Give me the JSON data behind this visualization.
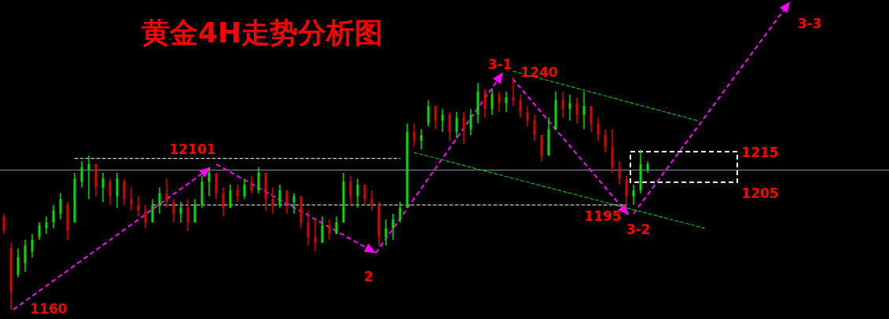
{
  "chart_data": {
    "type": "candlestick",
    "title": "黄金4H走势分析图",
    "categories": [
      null,
      null,
      null,
      null,
      null,
      null,
      null,
      null,
      null,
      null,
      null,
      null,
      null,
      null,
      null,
      null,
      null,
      null,
      null,
      null,
      null,
      null,
      null,
      null,
      null,
      null,
      null,
      null,
      null,
      null,
      null,
      null,
      null,
      null,
      null,
      null,
      null,
      null,
      null,
      null,
      null,
      null,
      null,
      null,
      null,
      null,
      null,
      null,
      null,
      null,
      null,
      null,
      null,
      null,
      null,
      null,
      null,
      null,
      null,
      null,
      null,
      null,
      null,
      null,
      null,
      null,
      null,
      null,
      null,
      null,
      null,
      null,
      null,
      null,
      null,
      null,
      null,
      null,
      null,
      null,
      null,
      null,
      null,
      null,
      null,
      null,
      null,
      null,
      null,
      null,
      null,
      null,
      null,
      null,
      null,
      null,
      null,
      null,
      null,
      null,
      null,
      null,
      null,
      null,
      null,
      null,
      null,
      null,
      null,
      null,
      null,
      null
    ],
    "ohlc": [
      [
        1192,
        1193,
        1186,
        1187
      ],
      [
        1181,
        1183,
        1160,
        1166
      ],
      [
        1172,
        1181,
        1171,
        1178
      ],
      [
        1176,
        1184,
        1173,
        1182
      ],
      [
        1180,
        1186,
        1178,
        1184
      ],
      [
        1185,
        1190,
        1184,
        1189
      ],
      [
        1188,
        1192,
        1186,
        1190
      ],
      [
        1190,
        1196,
        1188,
        1194
      ],
      [
        1193,
        1200,
        1191,
        1198
      ],
      [
        1196,
        1197,
        1184,
        1187
      ],
      [
        1190,
        1207,
        1190,
        1205
      ],
      [
        1204,
        1211,
        1202,
        1209
      ],
      [
        1208,
        1213,
        1198,
        1210
      ],
      [
        1210,
        1210,
        1199,
        1202
      ],
      [
        1202,
        1207,
        1197,
        1205
      ],
      [
        1204,
        1205,
        1196,
        1199
      ],
      [
        1199,
        1207,
        1195,
        1205
      ],
      [
        1204,
        1205,
        1196,
        1198
      ],
      [
        1198,
        1202,
        1194,
        1196
      ],
      [
        1196,
        1199,
        1192,
        1194
      ],
      [
        1194,
        1196,
        1188,
        1190
      ],
      [
        1190,
        1198,
        1190,
        1196
      ],
      [
        1196,
        1202,
        1193,
        1200
      ],
      [
        1200,
        1205,
        1195,
        1197
      ],
      [
        1197,
        1198,
        1190,
        1193
      ],
      [
        1193,
        1197,
        1190,
        1195
      ],
      [
        1195,
        1198,
        1187,
        1190
      ],
      [
        1190,
        1198,
        1190,
        1196
      ],
      [
        1196,
        1206,
        1195,
        1204
      ],
      [
        1204,
        1209,
        1199,
        1207
      ],
      [
        1207,
        1207,
        1198,
        1200
      ],
      [
        1200,
        1202,
        1192,
        1195
      ],
      [
        1195,
        1203,
        1195,
        1201
      ],
      [
        1201,
        1203,
        1197,
        1199
      ],
      [
        1199,
        1205,
        1198,
        1203
      ],
      [
        1203,
        1206,
        1200,
        1201
      ],
      [
        1201,
        1209,
        1200,
        1207
      ],
      [
        1207,
        1207,
        1194,
        1198
      ],
      [
        1198,
        1202,
        1193,
        1196
      ],
      [
        1196,
        1203,
        1195,
        1201
      ],
      [
        1201,
        1201,
        1193,
        1197
      ],
      [
        1197,
        1200,
        1193,
        1199
      ],
      [
        1199,
        1199,
        1188,
        1190
      ],
      [
        1190,
        1194,
        1182,
        1185
      ],
      [
        1185,
        1191,
        1180,
        1183
      ],
      [
        1183,
        1192,
        1183,
        1189
      ],
      [
        1189,
        1191,
        1184,
        1186
      ],
      [
        1186,
        1192,
        1186,
        1190
      ],
      [
        1190,
        1207,
        1190,
        1204
      ],
      [
        1204,
        1206,
        1196,
        1199
      ],
      [
        1199,
        1205,
        1195,
        1203
      ],
      [
        1203,
        1203,
        1196,
        1198
      ],
      [
        1198,
        1201,
        1194,
        1196
      ],
      [
        1196,
        1197,
        1182,
        1185
      ],
      [
        1185,
        1191,
        1182,
        1188
      ],
      [
        1188,
        1193,
        1184,
        1191
      ],
      [
        1191,
        1197,
        1190,
        1195
      ],
      [
        1195,
        1224,
        1195,
        1221
      ],
      [
        1221,
        1224,
        1216,
        1218
      ],
      [
        1218,
        1222,
        1215,
        1220
      ],
      [
        1224,
        1232,
        1223,
        1230
      ],
      [
        1230,
        1230,
        1222,
        1225
      ],
      [
        1225,
        1229,
        1221,
        1227
      ],
      [
        1227,
        1228,
        1218,
        1221
      ],
      [
        1221,
        1228,
        1219,
        1226
      ],
      [
        1226,
        1228,
        1217,
        1222
      ],
      [
        1222,
        1229,
        1220,
        1227
      ],
      [
        1227,
        1238,
        1224,
        1235
      ],
      [
        1235,
        1236,
        1226,
        1229
      ],
      [
        1229,
        1236,
        1227,
        1234
      ],
      [
        1234,
        1235,
        1228,
        1231
      ],
      [
        1231,
        1235,
        1228,
        1233
      ],
      [
        1233,
        1240,
        1230,
        1232
      ],
      [
        1232,
        1234,
        1226,
        1228
      ],
      [
        1228,
        1230,
        1223,
        1225
      ],
      [
        1225,
        1227,
        1218,
        1220
      ],
      [
        1220,
        1220,
        1211,
        1213
      ],
      [
        1213,
        1226,
        1213,
        1222
      ],
      [
        1222,
        1235,
        1222,
        1232
      ],
      [
        1232,
        1235,
        1226,
        1229
      ],
      [
        1229,
        1234,
        1225,
        1231
      ],
      [
        1231,
        1233,
        1224,
        1227
      ],
      [
        1227,
        1235,
        1222,
        1230
      ],
      [
        1230,
        1230,
        1221,
        1224
      ],
      [
        1224,
        1226,
        1218,
        1220
      ],
      [
        1220,
        1222,
        1214,
        1216
      ],
      [
        1216,
        1222,
        1207,
        1209
      ],
      [
        1209,
        1211,
        1203,
        1205
      ],
      [
        1205,
        1206,
        1196,
        1199
      ],
      [
        1199,
        1203,
        1196,
        1201
      ],
      [
        1201,
        1215,
        1200,
        1210
      ],
      [
        1208,
        1211,
        1207,
        1210
      ],
      null,
      null,
      null,
      null,
      null,
      null,
      null,
      null,
      null,
      null,
      null,
      null,
      null,
      null,
      null,
      null,
      null,
      null,
      null,
      null
    ],
    "colors": [
      "#e00000",
      "#e00000",
      "#00e000",
      "#00e000",
      "#00e000",
      "#00e000",
      "#00e000",
      "#00e000",
      "#00e000",
      "#e00000",
      "#00e000",
      "#00e000",
      "#00e000",
      "#e00000",
      "#00e000",
      "#e00000",
      "#00e000",
      "#e00000",
      "#e00000",
      "#e00000",
      "#e00000",
      "#00e000",
      "#00e000",
      "#e00000",
      "#e00000",
      "#00e000",
      "#e00000",
      "#00e000",
      "#00e000",
      "#00e000",
      "#e00000",
      "#e00000",
      "#00e000",
      "#e00000",
      "#00e000",
      "#e00000",
      "#00e000",
      "#e00000",
      "#e00000",
      "#00e000",
      "#e00000",
      "#00e000",
      "#e00000",
      "#e00000",
      "#e00000",
      "#00e000",
      "#e00000",
      "#00e000",
      "#00e000",
      "#e00000",
      "#00e000",
      "#e00000",
      "#e00000",
      "#e00000",
      "#00e000",
      "#00e000",
      "#00e000",
      "#00e000",
      "#e00000",
      "#00e000",
      "#00e000",
      "#e00000",
      "#00e000",
      "#e00000",
      "#00e000",
      "#e00000",
      "#00e000",
      "#00e000",
      "#e00000",
      "#00e000",
      "#e00000",
      "#00e000",
      "#e00000",
      "#e00000",
      "#e00000",
      "#e00000",
      "#e00000",
      "#00e000",
      "#00e000",
      "#e00000",
      "#00e000",
      "#e00000",
      "#00e000",
      "#e00000",
      "#e00000",
      "#e00000",
      "#e00000",
      "#e00000",
      "#e00000",
      "#00e000",
      "#00e000",
      "#00e000",
      null,
      null,
      null,
      null,
      null,
      null,
      null,
      null,
      null,
      null,
      null,
      null,
      null,
      null,
      null,
      null,
      null,
      null,
      null,
      null
    ],
    "series": [
      {
        "type": "line",
        "color": "#00c000",
        "line_style": "dashed",
        "values": [
          null,
          null,
          null,
          null,
          null,
          null,
          null,
          null,
          null,
          null,
          null,
          null,
          null,
          null,
          null,
          null,
          null,
          null,
          null,
          null,
          null,
          null,
          null,
          null,
          null,
          null,
          null,
          null,
          null,
          null,
          null,
          null,
          null,
          null,
          null,
          null,
          null,
          null,
          null,
          null,
          null,
          null,
          null,
          null,
          null,
          null,
          null,
          null,
          null,
          null,
          null,
          null,
          null,
          null,
          null,
          null,
          null,
          null,
          null,
          null,
          null,
          null,
          null,
          null,
          null,
          null,
          null,
          null,
          null,
          null,
          null,
          null,
          1242,
          null,
          null,
          null,
          null,
          null,
          null,
          null,
          null,
          null,
          null,
          null,
          null,
          null,
          null,
          null,
          null,
          null,
          null,
          null,
          null,
          null,
          null,
          null,
          null,
          null,
          1225,
          null,
          null,
          null,
          null,
          null,
          null,
          null,
          null,
          null,
          null,
          null,
          null,
          null
        ]
      },
      {
        "type": "line",
        "color": "#00c000",
        "line_style": "dashed",
        "values": [
          null,
          null,
          null,
          null,
          null,
          null,
          null,
          null,
          null,
          null,
          null,
          null,
          null,
          null,
          null,
          null,
          null,
          null,
          null,
          null,
          null,
          null,
          null,
          null,
          null,
          null,
          null,
          null,
          null,
          null,
          null,
          null,
          null,
          null,
          null,
          null,
          null,
          null,
          null,
          null,
          null,
          null,
          null,
          null,
          null,
          null,
          null,
          null,
          null,
          null,
          null,
          null,
          null,
          null,
          null,
          null,
          null,
          null,
          1214,
          null,
          null,
          null,
          null,
          null,
          null,
          null,
          null,
          null,
          null,
          null,
          null,
          null,
          null,
          null,
          null,
          null,
          null,
          null,
          null,
          null,
          null,
          null,
          null,
          null,
          null,
          null,
          null,
          null,
          null,
          null,
          null,
          null,
          null,
          null,
          null,
          null,
          null,
          null,
          null,
          1188,
          null,
          null,
          null,
          null,
          null,
          null,
          null,
          null,
          null,
          null,
          null,
          null
        ]
      },
      {
        "type": "line",
        "color": "#c8c8c8",
        "line_style": "dashed",
        "values": [
          null,
          null,
          null,
          null,
          null,
          null,
          null,
          null,
          null,
          null,
          1212,
          null,
          null,
          null,
          null,
          null,
          null,
          null,
          null,
          null,
          null,
          null,
          null,
          null,
          null,
          null,
          null,
          null,
          null,
          null,
          null,
          null,
          null,
          null,
          null,
          null,
          null,
          null,
          null,
          null,
          null,
          null,
          null,
          null,
          null,
          null,
          null,
          null,
          null,
          null,
          null,
          null,
          null,
          null,
          null,
          null,
          1212,
          null,
          null,
          null,
          null,
          null,
          null,
          null,
          null,
          null,
          null,
          null,
          null,
          null,
          null,
          null,
          null,
          null,
          null,
          null,
          null,
          null,
          null,
          null,
          null,
          null,
          null,
          null,
          null,
          null,
          null,
          null,
          null,
          null,
          null,
          null,
          null,
          null,
          null,
          null,
          null,
          null,
          null,
          null,
          null,
          null,
          null,
          null,
          null,
          null,
          null,
          null,
          null,
          null,
          null,
          null
        ]
      },
      {
        "type": "line",
        "color": "#c8c8c8",
        "line_style": "dashed",
        "values": [
          null,
          null,
          null,
          null,
          null,
          null,
          null,
          null,
          null,
          null,
          null,
          null,
          null,
          null,
          null,
          null,
          null,
          null,
          null,
          null,
          null,
          1196,
          null,
          null,
          null,
          null,
          null,
          null,
          null,
          null,
          null,
          null,
          null,
          null,
          null,
          null,
          null,
          null,
          null,
          null,
          null,
          null,
          null,
          null,
          null,
          null,
          null,
          null,
          null,
          null,
          null,
          null,
          null,
          null,
          null,
          null,
          null,
          null,
          null,
          null,
          null,
          null,
          null,
          null,
          null,
          null,
          null,
          null,
          null,
          null,
          null,
          null,
          null,
          null,
          null,
          null,
          null,
          null,
          null,
          null,
          null,
          null,
          null,
          null,
          null,
          null,
          null,
          null,
          1196,
          null,
          null,
          null,
          null,
          null,
          null,
          null,
          null,
          null,
          null,
          null,
          null,
          null,
          null,
          null,
          null,
          null,
          null,
          null,
          null,
          null,
          null,
          null
        ]
      }
    ],
    "ref_lines": [
      {
        "axis": "y",
        "value": 1208,
        "color": "#8c96a5",
        "line_style": "solid"
      }
    ],
    "annotations": [
      "12101",
      "1160",
      "2",
      "3-1",
      "1240",
      "1195",
      "3-2",
      "3-3",
      "1215",
      "1205"
    ]
  }
}
